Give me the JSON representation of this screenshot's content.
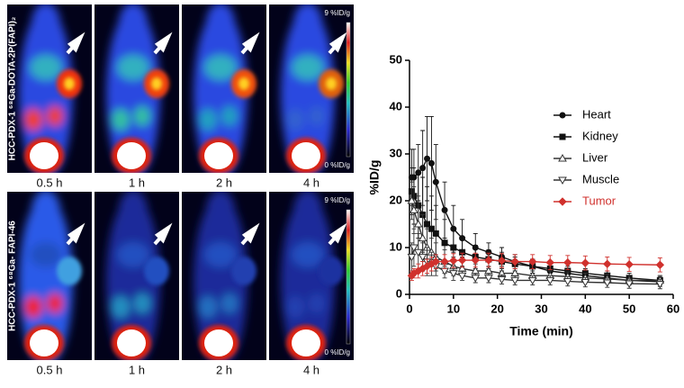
{
  "images": {
    "rows": [
      {
        "label": "HCC-PDX-1  ⁶⁸Ga-DOTA-2P(FAPI)₂",
        "scale_max": "9 %ID/g",
        "scale_min": "0 %ID/g"
      },
      {
        "label": "HCC-PDX-1  ⁶⁸Ga- FAPI-46",
        "scale_max": "9 %ID/g",
        "scale_min": "0 %ID/g"
      }
    ],
    "time_labels": [
      "0.5 h",
      "1 h",
      "2 h",
      "4 h"
    ]
  },
  "chart_data": {
    "type": "line",
    "y_label": "%ID/g",
    "x_label": "Time (min)",
    "x": [
      0.5,
      1,
      2,
      3,
      4,
      5,
      6,
      8,
      10,
      12,
      15,
      18,
      21,
      24,
      28,
      32,
      36,
      40,
      45,
      50,
      57
    ],
    "xlim": [
      0,
      60
    ],
    "xticks": [
      0,
      10,
      20,
      30,
      40,
      50,
      60
    ],
    "ylim": [
      0,
      50
    ],
    "yticks": [
      0,
      10,
      20,
      30,
      40,
      50
    ],
    "legend": "upper right",
    "series": [
      {
        "name": "Heart",
        "color": "#111111",
        "marker": "circle",
        "values": [
          25,
          25,
          26,
          27,
          29,
          28,
          24,
          18,
          14,
          12,
          10,
          9,
          8,
          7,
          6,
          5,
          4.5,
          4,
          3.5,
          3,
          2.7
        ],
        "errors": [
          6,
          6,
          6,
          8,
          9,
          10,
          8,
          6,
          5,
          4,
          3,
          2,
          2,
          1.5,
          1.5,
          1,
          1,
          1,
          1,
          1,
          1
        ]
      },
      {
        "name": "Kidney",
        "color": "#111111",
        "marker": "square",
        "values": [
          22,
          21,
          19,
          17,
          15,
          14,
          13,
          11,
          10,
          9,
          8,
          7.5,
          7,
          6.5,
          6,
          5.5,
          5,
          4.5,
          4,
          3.5,
          3
        ],
        "errors": [
          5,
          6,
          7,
          8,
          8,
          7,
          6,
          5,
          4,
          3,
          2.5,
          2,
          2,
          1.5,
          1.5,
          1,
          1,
          1,
          1,
          1,
          1
        ]
      },
      {
        "name": "Liver",
        "color": "#333333",
        "marker": "triangle-up",
        "values": [
          20,
          18,
          15,
          12,
          10,
          9,
          8,
          7,
          6,
          5.5,
          5,
          5,
          4.5,
          4.5,
          4,
          4,
          3.8,
          3.5,
          3.3,
          3,
          3
        ],
        "errors": [
          4,
          5,
          6,
          5,
          4,
          3,
          3,
          2.5,
          2,
          1.5,
          1.5,
          1,
          1,
          1,
          1,
          1,
          1,
          1,
          1,
          1,
          1
        ]
      },
      {
        "name": "Muscle",
        "color": "#333333",
        "marker": "triangle-down",
        "values": [
          8,
          10,
          9,
          8,
          7,
          6.5,
          6,
          5,
          4.5,
          4,
          3.5,
          3.5,
          3.2,
          3,
          3,
          3,
          2.8,
          2.6,
          2.5,
          2.3,
          2.2
        ],
        "errors": [
          3,
          4,
          4,
          3,
          3,
          2.5,
          2,
          1.5,
          1.5,
          1,
          1,
          1,
          1,
          1,
          1,
          1,
          1,
          1,
          1,
          1,
          1
        ]
      },
      {
        "name": "Tumor",
        "color": "#d0312d",
        "marker": "diamond",
        "values": [
          4,
          4.5,
          5,
          5.5,
          6,
          6.5,
          7,
          7,
          7.2,
          7.3,
          7.3,
          7.3,
          7.2,
          7,
          7,
          6.8,
          6.8,
          6.7,
          6.5,
          6.4,
          6.3
        ],
        "errors": [
          1,
          1,
          1.5,
          1.5,
          1.5,
          1.5,
          1.5,
          1.5,
          1.5,
          1.5,
          1.5,
          1.5,
          1.5,
          1.5,
          1.5,
          1.5,
          1.5,
          1.5,
          1.5,
          1.5,
          1.5
        ]
      }
    ]
  }
}
